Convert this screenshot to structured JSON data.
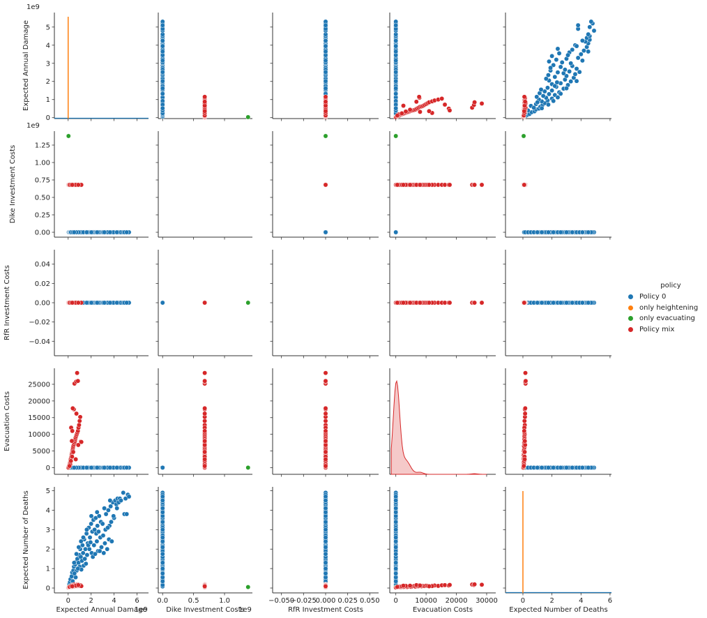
{
  "chart_data": {
    "type": "scatter",
    "subtype": "pairplot",
    "title": "",
    "variables": [
      "Expected Annual Damage",
      "Dike Investment Costs",
      "RfR Investment Costs",
      "Evacuation Costs",
      "Expected Number of Deaths"
    ],
    "hue": "policy",
    "legend": {
      "title": "policy",
      "placement": "right-center",
      "entries": [
        {
          "name": "Policy 0",
          "color": "#1f77b4"
        },
        {
          "name": "only heightening",
          "color": "#ff7f0e"
        },
        {
          "name": "only evacuating",
          "color": "#2ca02c"
        },
        {
          "name": "Policy mix",
          "color": "#d62728"
        }
      ]
    },
    "axes": {
      "Expected Annual Damage": {
        "range": [
          -50000000.0,
          5800000000.0
        ],
        "ticks": [
          0,
          1000000000.0,
          2000000000.0,
          3000000000.0,
          4000000000.0,
          5000000000.0
        ],
        "tick_labels": [
          "0",
          "1",
          "2",
          "3",
          "4",
          "5"
        ],
        "offset": "1e9"
      },
      "Dike Investment Costs": {
        "range": [
          -70000000.0,
          1450000000.0
        ],
        "ticks": [
          0,
          250000000.0,
          500000000.0,
          750000000.0,
          1000000000.0,
          1250000000.0
        ],
        "tick_labels": [
          "0.00",
          "0.25",
          "0.50",
          "0.75",
          "1.00",
          "1.25"
        ],
        "offset": "1e9"
      },
      "RfR Investment Costs": {
        "range": [
          -0.055,
          0.055
        ],
        "ticks": [
          -0.04,
          -0.02,
          0,
          0.02,
          0.04
        ],
        "tick_labels": [
          "−0.04",
          "−0.02",
          "0.00",
          "0.02",
          "0.04"
        ],
        "offset": ""
      },
      "Evacuation Costs": {
        "range": [
          -2000,
          29800
        ],
        "ticks": [
          0,
          5000,
          10000,
          15000,
          20000,
          25000
        ],
        "tick_labels": [
          "0",
          "5000",
          "10000",
          "15000",
          "20000",
          "25000"
        ],
        "offset": ""
      },
      "Expected Number of Deaths": {
        "range": [
          -0.25,
          5.2
        ],
        "ticks": [
          0,
          1,
          2,
          3,
          4,
          5
        ],
        "tick_labels": [
          "0",
          "1",
          "2",
          "3",
          "4",
          "5"
        ],
        "offset": ""
      }
    },
    "bottom_axes": {
      "Expected Annual Damage": {
        "ticks": [
          0,
          2000000000.0,
          4000000000.0,
          6000000000.0
        ],
        "tick_labels": [
          "0",
          "2",
          "4",
          "6"
        ],
        "offset": "1e9",
        "range": [
          -1200000000.0,
          7000000000.0
        ]
      },
      "Dike Investment Costs": {
        "ticks": [
          0,
          500000000.0,
          1000000000.0
        ],
        "tick_labels": [
          "0.0",
          "0.5",
          "1.0"
        ],
        "offset": "1e9",
        "range": [
          -70000000.0,
          1450000000.0
        ]
      },
      "RfR Investment Costs": {
        "ticks": [
          -0.05,
          -0.025,
          0,
          0.025,
          0.05
        ],
        "tick_labels": [
          "−0.050",
          "−0.025",
          "0.000",
          "0.025",
          "0.050"
        ],
        "offset": "",
        "range": [
          -0.06,
          0.06
        ]
      },
      "Evacuation Costs": {
        "ticks": [
          0,
          10000,
          20000,
          30000
        ],
        "tick_labels": [
          "0",
          "10000",
          "20000",
          "30000"
        ],
        "offset": "",
        "range": [
          -2000,
          33000
        ]
      },
      "Expected Number of Deaths": {
        "ticks": [
          0,
          2,
          4,
          6
        ],
        "tick_labels": [
          "0",
          "2",
          "4",
          "6"
        ],
        "offset": "",
        "range": [
          -1.2,
          6.1
        ]
      }
    },
    "series": [
      {
        "name": "Policy 0",
        "color": "#1f77b4",
        "eval_costs": 0,
        "dike_costs": 0,
        "rfr_costs": 0,
        "damage_deaths": [
          [
            50000000.0,
            0.08
          ],
          [
            100000000.0,
            0.2
          ],
          [
            150000000.0,
            0.3
          ],
          [
            200000000.0,
            0.45
          ],
          [
            300000000.0,
            0.6
          ],
          [
            350000000.0,
            0.8
          ],
          [
            450000000.0,
            0.9
          ],
          [
            500000000.0,
            1.1
          ],
          [
            600000000.0,
            1.2
          ],
          [
            700000000.0,
            1.35
          ],
          [
            750000000.0,
            0.9
          ],
          [
            800000000.0,
            1.5
          ],
          [
            900000000.0,
            1.3
          ],
          [
            950000000.0,
            1.7
          ],
          [
            1000000000.0,
            1.1
          ],
          [
            1050000000.0,
            2.0
          ],
          [
            1100000000.0,
            1.6
          ],
          [
            1200000000.0,
            1.4
          ],
          [
            1250000000.0,
            2.2
          ],
          [
            1300000000.0,
            1.8
          ],
          [
            1400000000.0,
            2.5
          ],
          [
            1450000000.0,
            1.5
          ],
          [
            1500000000.0,
            2.0
          ],
          [
            1600000000.0,
            2.8
          ],
          [
            1650000000.0,
            1.7
          ],
          [
            1700000000.0,
            2.3
          ],
          [
            1800000000.0,
            3.1
          ],
          [
            1850000000.0,
            2.0
          ],
          [
            1900000000.0,
            2.6
          ],
          [
            2000000000.0,
            3.3
          ],
          [
            2050000000.0,
            1.8
          ],
          [
            2100000000.0,
            2.9
          ],
          [
            2200000000.0,
            3.5
          ],
          [
            2250000000.0,
            2.2
          ],
          [
            2300000000.0,
            3.0
          ],
          [
            2400000000.0,
            3.6
          ],
          [
            2500000000.0,
            2.4
          ],
          [
            2550000000.0,
            3.2
          ],
          [
            2600000000.0,
            1.9
          ],
          [
            2700000000.0,
            3.7
          ],
          [
            2800000000.0,
            2.6
          ],
          [
            2850000000.0,
            3.4
          ],
          [
            2900000000.0,
            2.1
          ],
          [
            3000000000.0,
            3.3
          ],
          [
            3100000000.0,
            1.8
          ],
          [
            3200000000.0,
            2.3
          ],
          [
            3300000000.0,
            3.8
          ],
          [
            3400000000.0,
            2.0
          ],
          [
            3500000000.0,
            4.0
          ],
          [
            3550000000.0,
            2.5
          ],
          [
            3600000000.0,
            3.2
          ],
          [
            3700000000.0,
            4.2
          ],
          [
            3800000000.0,
            2.4
          ],
          [
            3900000000.0,
            4.4
          ],
          [
            4000000000.0,
            3.6
          ],
          [
            4100000000.0,
            4.5
          ],
          [
            4200000000.0,
            4.3
          ],
          [
            4300000000.0,
            4.6
          ],
          [
            4400000000.0,
            4.4
          ],
          [
            4500000000.0,
            4.6
          ],
          [
            4600000000.0,
            4.5
          ],
          [
            4800000000.0,
            4.9
          ],
          [
            5000000000.0,
            4.6
          ],
          [
            5200000000.0,
            4.8
          ],
          [
            5300000000.0,
            4.7
          ],
          [
            4900000000.0,
            3.8
          ],
          [
            5100000000.0,
            3.8
          ],
          [
            250000000.0,
            0.15
          ],
          [
            400000000.0,
            0.35
          ],
          [
            650000000.0,
            0.55
          ],
          [
            1150000000.0,
            0.95
          ],
          [
            1350000000.0,
            1.15
          ],
          [
            1550000000.0,
            1.25
          ],
          [
            2150000000.0,
            1.6
          ],
          [
            2350000000.0,
            1.75
          ],
          [
            2750000000.0,
            1.9
          ],
          [
            550000000.0,
            0.75
          ],
          [
            850000000.0,
            1.0
          ],
          [
            1750000000.0,
            2.2
          ],
          [
            1950000000.0,
            2.35
          ],
          [
            2450000000.0,
            2.8
          ],
          [
            2650000000.0,
            2.9
          ],
          [
            3050000000.0,
            2.7
          ],
          [
            3250000000.0,
            3.0
          ],
          [
            3450000000.0,
            3.1
          ],
          [
            3750000000.0,
            3.4
          ],
          [
            3950000000.0,
            3.7
          ],
          [
            4250000000.0,
            4.1
          ],
          [
            1120000000.0,
            2.4
          ],
          [
            920000000.0,
            2.1
          ],
          [
            1320000000.0,
            2.6
          ],
          [
            1620000000.0,
            3.0
          ],
          [
            720000000.0,
            1.75
          ],
          [
            520000000.0,
            1.3
          ],
          [
            2020000000.0,
            3.7
          ],
          [
            2520000000.0,
            3.9
          ],
          [
            3150000000.0,
            4.1
          ],
          [
            3650000000.0,
            4.5
          ]
        ]
      },
      {
        "name": "only heightening",
        "color": "#ff7f0e",
        "damage_deaths": []
      },
      {
        "name": "only evacuating",
        "color": "#2ca02c",
        "points": [
          {
            "damage": 30000000.0,
            "dike": 1380000000.0,
            "rfr": 0,
            "evac": 0,
            "deaths": 0.05
          }
        ]
      },
      {
        "name": "Policy mix",
        "color": "#d62728",
        "dike_costs": 680000000.0,
        "rfr_costs": 0,
        "damage_evac_deaths": [
          [
            20000000.0,
            0,
            0.02
          ],
          [
            50000000.0,
            300,
            0.03
          ],
          [
            80000000.0,
            600,
            0.04
          ],
          [
            100000000.0,
            900,
            0.05
          ],
          [
            120000000.0,
            1200,
            0.04
          ],
          [
            150000000.0,
            1500,
            0.06
          ],
          [
            180000000.0,
            1800,
            0.05
          ],
          [
            200000000.0,
            2200,
            0.07
          ],
          [
            220000000.0,
            2600,
            0.05
          ],
          [
            250000000.0,
            3000,
            0.06
          ],
          [
            280000000.0,
            3400,
            0.08
          ],
          [
            300000000.0,
            3800,
            0.05
          ],
          [
            320000000.0,
            4200,
            0.07
          ],
          [
            350000000.0,
            4600,
            0.09
          ],
          [
            380000000.0,
            5000,
            0.06
          ],
          [
            400000000.0,
            5500,
            0.08
          ],
          [
            420000000.0,
            6000,
            0.1
          ],
          [
            450000000.0,
            6500,
            0.07
          ],
          [
            500000000.0,
            7000,
            0.09
          ],
          [
            550000000.0,
            7500,
            0.08
          ],
          [
            600000000.0,
            8000,
            0.1
          ],
          [
            620000000.0,
            8500,
            0.09
          ],
          [
            650000000.0,
            9000,
            0.11
          ],
          [
            700000000.0,
            9500,
            0.1
          ],
          [
            750000000.0,
            10000,
            0.12
          ],
          [
            800000000.0,
            10500,
            0.11
          ],
          [
            850000000.0,
            11000,
            0.1
          ],
          [
            900000000.0,
            12000,
            0.12
          ],
          [
            950000000.0,
            12800,
            0.13
          ],
          [
            1000000000.0,
            14000,
            0.11
          ],
          [
            1050000000.0,
            15200,
            0.14
          ],
          [
            720000000.0,
            16200,
            0.15
          ],
          [
            500000000.0,
            17500,
            0.13
          ],
          [
            400000000.0,
            17800,
            0.16
          ],
          [
            550000000.0,
            25200,
            0.18
          ],
          [
            700000000.0,
            25800,
            0.16
          ],
          [
            850000000.0,
            26000,
            0.19
          ],
          [
            780000000.0,
            28400,
            0.17
          ],
          [
            180000000.0,
            1000,
            0.07
          ],
          [
            240000000.0,
            2000,
            0.09
          ],
          [
            340000000.0,
            3300,
            0.11
          ],
          [
            440000000.0,
            4700,
            0.12
          ],
          [
            1100000000.0,
            7800,
            0.14
          ],
          [
            1150000000.0,
            7700,
            0.1
          ],
          [
            660000000.0,
            2500,
            0.12
          ],
          [
            880000000.0,
            6800,
            0.15
          ],
          [
            320000000.0,
            8000,
            0.13
          ],
          [
            120000000.0,
            500,
            0.06
          ],
          [
            260000000.0,
            12000,
            0.1
          ],
          [
            360000000.0,
            11000,
            0.09
          ]
        ]
      }
    ],
    "diagonal": {
      "Expected Annual Damage": {
        "type": "kde",
        "series": [
          "only heightening spike at 0"
        ]
      },
      "Evacuation Costs": {
        "type": "kde",
        "series": [
          "Policy mix"
        ],
        "peak_at": 0
      },
      "Expected Number of Deaths": {
        "type": "kde",
        "series": [
          "only heightening spike at 0"
        ]
      }
    },
    "grid": false
  }
}
